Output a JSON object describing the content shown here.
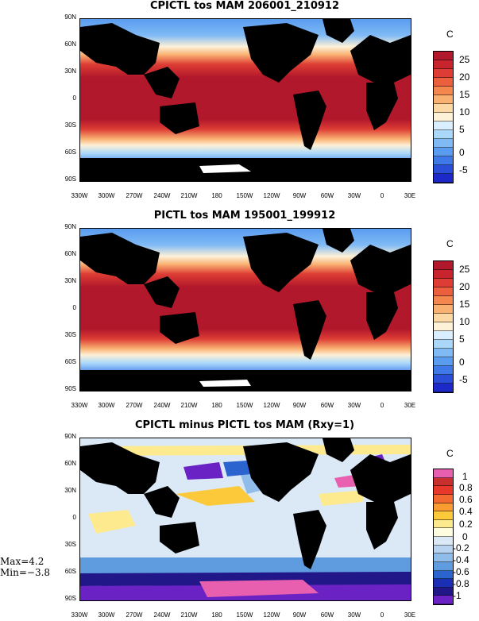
{
  "panels": [
    {
      "title": "CPICTL tos MAM 206001_210912",
      "colorbar": {
        "unit": "C",
        "labels": [
          "25",
          "20",
          "15",
          "10",
          "5",
          "0",
          "-5"
        ],
        "colors": [
          "#b2182b",
          "#c8242e",
          "#dd3d34",
          "#ec5f3e",
          "#f4874d",
          "#f9b172",
          "#fcd8a4",
          "#fdf1d8",
          "#d9efff",
          "#a9d8fb",
          "#7fbaf5",
          "#5a9cf0",
          "#3f79e8",
          "#2b4ed8",
          "#1c28c8"
        ]
      }
    },
    {
      "title": "PICTL tos MAM 195001_199912",
      "colorbar": {
        "unit": "C",
        "labels": [
          "25",
          "20",
          "15",
          "10",
          "5",
          "0",
          "-5"
        ],
        "colors": [
          "#b2182b",
          "#c8242e",
          "#dd3d34",
          "#ec5f3e",
          "#f4874d",
          "#f9b172",
          "#fcd8a4",
          "#fdf1d8",
          "#d9efff",
          "#a9d8fb",
          "#7fbaf5",
          "#5a9cf0",
          "#3f79e8",
          "#2b4ed8",
          "#1c28c8"
        ]
      }
    },
    {
      "title": "CPICTL minus PICTL tos MAM (Rxy=1)",
      "colorbar": {
        "unit": "C",
        "labels": [
          "1",
          "0.8",
          "0.6",
          "0.4",
          "0.2",
          "0",
          "-0.2",
          "-0.4",
          "-0.6",
          "-0.8",
          "-1"
        ],
        "colors": [
          "#e75fae",
          "#c9302d",
          "#e8382b",
          "#f26a2f",
          "#f99d33",
          "#fbc93a",
          "#fde98e",
          "#fffde0",
          "#dbe9f7",
          "#b7d3ef",
          "#8fbce8",
          "#5e9bdf",
          "#2c64cf",
          "#1b2fb4",
          "#221789",
          "#6b22c5"
        ]
      }
    }
  ],
  "lat_labels": [
    "90N",
    "60N",
    "30N",
    "0",
    "30S",
    "60S",
    "90S"
  ],
  "lon_labels": [
    "330W",
    "300W",
    "270W",
    "240W",
    "210W",
    "180",
    "150W",
    "120W",
    "90W",
    "60W",
    "30W",
    "0",
    "30E"
  ],
  "stats": {
    "max": "Max=4.2",
    "min": "Min=−3.8"
  }
}
